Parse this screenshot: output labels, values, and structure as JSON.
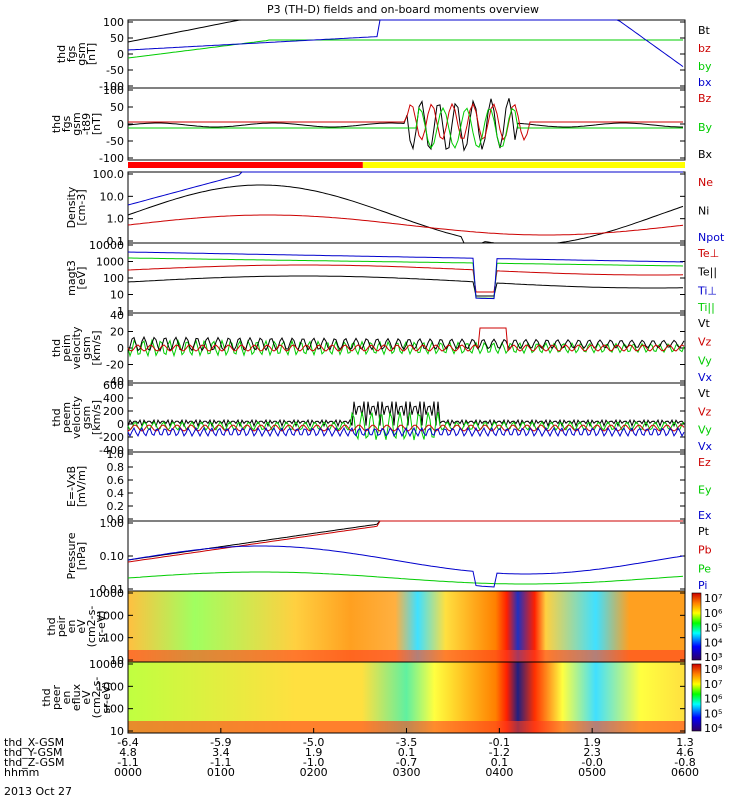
{
  "title": "P3 (TH-D) fields and on-board moments overview",
  "date_label": "2013 Oct 27",
  "chart_data": {
    "type": "line",
    "x_axis": {
      "rows": [
        {
          "label": "thd_X-GSM",
          "values": [
            "-6.4",
            "-5.9",
            "-5.0",
            "-3.5",
            "-0.1",
            "1.9",
            "1.3"
          ]
        },
        {
          "label": "thd_Y-GSM",
          "values": [
            "4.8",
            "3.4",
            "1.9",
            "0.1",
            "-1.2",
            "2.3",
            "4.6"
          ]
        },
        {
          "label": "thd_Z-GSM",
          "values": [
            "-1.1",
            "-1.1",
            "-1.0",
            "-0.7",
            "0.1",
            "-0.0",
            "-0.8"
          ]
        },
        {
          "label": "hhmm",
          "values": [
            "0000",
            "0100",
            "0200",
            "0300",
            "0400",
            "0500",
            "0600"
          ]
        }
      ],
      "time_hours": [
        0,
        1,
        2,
        3,
        4,
        5,
        6
      ]
    },
    "panels": [
      {
        "id": "fgs",
        "ylabel": [
          "thd",
          "fgs",
          "gsm",
          "[nT]"
        ],
        "ticks": [
          "100",
          "50",
          "0",
          "-50",
          "-100"
        ],
        "ylim": [
          -100,
          100
        ],
        "legend": [
          {
            "name": "Bt",
            "color": "#000000"
          },
          {
            "name": "bz",
            "color": "#cc0000"
          },
          {
            "name": "by",
            "color": "#00cc00"
          },
          {
            "name": "bx",
            "color": "#0000cc"
          }
        ]
      },
      {
        "id": "fgs2",
        "ylabel": [
          "thd",
          "fgs",
          "gsm",
          "-t89",
          "[nT]"
        ],
        "ticks": [
          "100",
          "50",
          "0",
          "-50",
          "-100"
        ],
        "ylim": [
          -120,
          100
        ],
        "legend": [
          {
            "name": "Bz",
            "color": "#cc0000"
          },
          {
            "name": "By",
            "color": "#00cc00"
          },
          {
            "name": "Bx",
            "color": "#000000"
          }
        ]
      },
      {
        "id": "density",
        "ylabel": [
          "Density",
          "[cm-3]"
        ],
        "ticks": [
          "100.0",
          "10.0",
          "1.0",
          "0.1"
        ],
        "ylim": [
          0.1,
          100
        ],
        "legend": [
          {
            "name": "Ne",
            "color": "#cc0000"
          },
          {
            "name": "Ni",
            "color": "#000000"
          },
          {
            "name": "Npot",
            "color": "#0000cc"
          }
        ]
      },
      {
        "id": "temp",
        "ylabel": [
          "magt3",
          "[eV]"
        ],
        "ticks": [
          "10000",
          "1000",
          "100",
          "10",
          "1"
        ],
        "ylim": [
          1,
          10000
        ],
        "legend": [
          {
            "name": "Te⊥",
            "color": "#cc0000"
          },
          {
            "name": "Te||",
            "color": "#000000"
          },
          {
            "name": "Ti⊥",
            "color": "#0000cc"
          },
          {
            "name": "Ti||",
            "color": "#00cc00"
          }
        ]
      },
      {
        "id": "vi",
        "ylabel": [
          "thd",
          "peim",
          "velocity",
          "gsm",
          "[km/s]"
        ],
        "ticks": [
          "40",
          "20",
          "0",
          "-20",
          "-40"
        ],
        "ylim": [
          -40,
          40
        ],
        "legend": [
          {
            "name": "Vt",
            "color": "#000000"
          },
          {
            "name": "Vz",
            "color": "#cc0000"
          },
          {
            "name": "Vy",
            "color": "#00cc00"
          },
          {
            "name": "Vx",
            "color": "#0000cc"
          }
        ]
      },
      {
        "id": "ve",
        "ylabel": [
          "thd",
          "peem",
          "velocity",
          "gsm",
          "[km/s]"
        ],
        "ticks": [
          "600",
          "400",
          "200",
          "0",
          "-200",
          "-400"
        ],
        "ylim": [
          -400,
          600
        ],
        "legend": [
          {
            "name": "Vt",
            "color": "#000000"
          },
          {
            "name": "Vz",
            "color": "#cc0000"
          },
          {
            "name": "Vy",
            "color": "#00cc00"
          },
          {
            "name": "Vx",
            "color": "#0000cc"
          }
        ]
      },
      {
        "id": "efield",
        "ylabel": [
          "E=-VxB",
          "[mV/m]"
        ],
        "ticks": [
          "1.0",
          "0.8",
          "0.6",
          "0.4",
          "0.2",
          "0.0"
        ],
        "ylim": [
          0,
          1
        ],
        "legend": [
          {
            "name": "Ez",
            "color": "#cc0000"
          },
          {
            "name": "Ey",
            "color": "#00cc00"
          },
          {
            "name": "Ex",
            "color": "#0000cc"
          }
        ]
      },
      {
        "id": "pressure",
        "ylabel": [
          "Pressure",
          "[nPa]"
        ],
        "ticks": [
          "1.00",
          "0.10",
          "0.01"
        ],
        "ylim": [
          0.01,
          1
        ],
        "legend": [
          {
            "name": "Pt",
            "color": "#000000"
          },
          {
            "name": "Pb",
            "color": "#cc0000"
          },
          {
            "name": "Pe",
            "color": "#00cc00"
          },
          {
            "name": "Pi",
            "color": "#0000cc"
          }
        ]
      },
      {
        "id": "ion_spec",
        "ylabel": [
          "thd",
          "peir",
          "en",
          "eV",
          "(cm2-s-",
          "sr-eV)"
        ],
        "ticks": [
          "10000",
          "1000",
          "100",
          "10"
        ],
        "ylim": [
          5,
          20000
        ]
      },
      {
        "id": "elec_spec",
        "ylabel": [
          "thd",
          "peer",
          "en",
          "eflux",
          "eV",
          "(cm2-s-",
          "sr-eV)"
        ],
        "ticks": [
          "10000",
          "1000",
          "100",
          "10"
        ],
        "ylim": [
          5,
          20000
        ]
      }
    ],
    "colorbars": [
      {
        "panel": "ion_spec",
        "labels": [
          "10⁷",
          "10⁶",
          "10⁵",
          "10⁴",
          "10³"
        ]
      },
      {
        "panel": "elec_spec",
        "labels": [
          "10⁸",
          "10⁷",
          "10⁶",
          "10⁵",
          "10⁴"
        ]
      }
    ],
    "mode_bar": {
      "segments": [
        {
          "from_hour": 0,
          "to_hour": 2.53,
          "color": "#ff0000"
        },
        {
          "from_hour": 2.53,
          "to_hour": 6,
          "color": "#ffff00"
        }
      ]
    }
  }
}
